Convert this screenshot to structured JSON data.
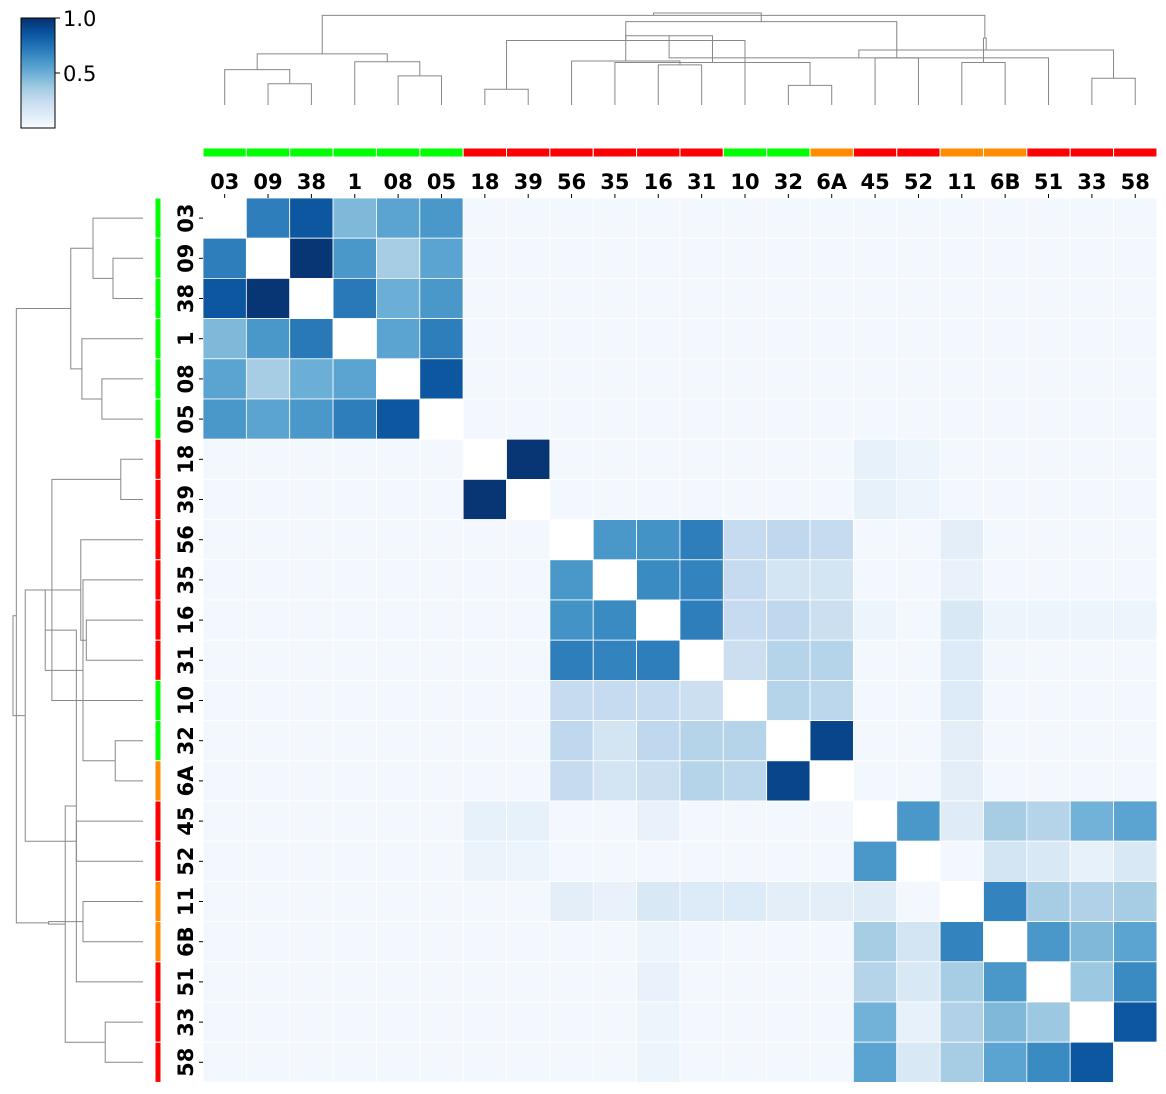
{
  "chart_data": {
    "type": "heatmap",
    "title": "",
    "xlabel": "",
    "ylabel": "",
    "labels": [
      "03",
      "09",
      "38",
      "1",
      "08",
      "05",
      "18",
      "39",
      "56",
      "35",
      "16",
      "31",
      "10",
      "32",
      "6A",
      "45",
      "52",
      "11",
      "6B",
      "51",
      "33",
      "58"
    ],
    "groups": [
      "green",
      "green",
      "green",
      "green",
      "green",
      "green",
      "red",
      "red",
      "red",
      "red",
      "red",
      "red",
      "green",
      "green",
      "orange",
      "red",
      "red",
      "orange",
      "orange",
      "red",
      "red",
      "red"
    ],
    "group_colors": {
      "green": "#00ff00",
      "red": "#ff0000",
      "orange": "#ff8c00"
    },
    "colorbar": {
      "min": 0.0,
      "max": 1.0,
      "ticks": [
        0.5,
        1.0
      ],
      "tick_labels": [
        "0.5",
        "1.0"
      ],
      "colormap": "Blues"
    },
    "values": [
      [
        null,
        0.7,
        0.85,
        0.45,
        0.55,
        0.6,
        0.02,
        0.02,
        0.02,
        0.02,
        0.02,
        0.02,
        0.02,
        0.02,
        0.02,
        0.02,
        0.02,
        0.02,
        0.02,
        0.02,
        0.02,
        0.02
      ],
      [
        0.7,
        null,
        0.98,
        0.6,
        0.35,
        0.55,
        0.02,
        0.02,
        0.02,
        0.02,
        0.02,
        0.02,
        0.02,
        0.02,
        0.02,
        0.02,
        0.02,
        0.02,
        0.02,
        0.02,
        0.02,
        0.02
      ],
      [
        0.85,
        0.98,
        null,
        0.72,
        0.5,
        0.6,
        0.02,
        0.02,
        0.02,
        0.02,
        0.02,
        0.02,
        0.02,
        0.02,
        0.02,
        0.02,
        0.02,
        0.02,
        0.02,
        0.02,
        0.02,
        0.02
      ],
      [
        0.45,
        0.6,
        0.72,
        null,
        0.55,
        0.7,
        0.02,
        0.02,
        0.02,
        0.02,
        0.02,
        0.02,
        0.02,
        0.02,
        0.02,
        0.02,
        0.02,
        0.02,
        0.02,
        0.02,
        0.02,
        0.02
      ],
      [
        0.55,
        0.35,
        0.5,
        0.55,
        null,
        0.85,
        0.02,
        0.02,
        0.02,
        0.02,
        0.02,
        0.02,
        0.02,
        0.02,
        0.02,
        0.02,
        0.02,
        0.02,
        0.02,
        0.02,
        0.02,
        0.02
      ],
      [
        0.6,
        0.55,
        0.6,
        0.7,
        0.85,
        null,
        0.02,
        0.02,
        0.02,
        0.02,
        0.02,
        0.02,
        0.02,
        0.02,
        0.02,
        0.02,
        0.02,
        0.02,
        0.02,
        0.02,
        0.02,
        0.02
      ],
      [
        0.02,
        0.02,
        0.02,
        0.02,
        0.02,
        0.02,
        null,
        0.98,
        0.02,
        0.02,
        0.02,
        0.02,
        0.02,
        0.02,
        0.02,
        0.08,
        0.05,
        0.02,
        0.02,
        0.02,
        0.02,
        0.02
      ],
      [
        0.02,
        0.02,
        0.02,
        0.02,
        0.02,
        0.02,
        0.98,
        null,
        0.02,
        0.02,
        0.02,
        0.02,
        0.02,
        0.02,
        0.02,
        0.08,
        0.05,
        0.02,
        0.02,
        0.02,
        0.02,
        0.02
      ],
      [
        0.02,
        0.02,
        0.02,
        0.02,
        0.02,
        0.02,
        0.02,
        0.02,
        null,
        0.6,
        0.62,
        0.7,
        0.25,
        0.27,
        0.25,
        0.02,
        0.02,
        0.1,
        0.02,
        0.02,
        0.02,
        0.02
      ],
      [
        0.02,
        0.02,
        0.02,
        0.02,
        0.02,
        0.02,
        0.02,
        0.02,
        0.6,
        null,
        0.65,
        0.68,
        0.25,
        0.18,
        0.18,
        0.02,
        0.02,
        0.07,
        0.02,
        0.02,
        0.02,
        0.02
      ],
      [
        0.02,
        0.02,
        0.02,
        0.02,
        0.02,
        0.02,
        0.02,
        0.02,
        0.62,
        0.65,
        null,
        0.7,
        0.25,
        0.27,
        0.22,
        0.05,
        0.02,
        0.15,
        0.05,
        0.05,
        0.05,
        0.05
      ],
      [
        0.02,
        0.02,
        0.02,
        0.02,
        0.02,
        0.02,
        0.02,
        0.02,
        0.7,
        0.68,
        0.7,
        null,
        0.22,
        0.3,
        0.3,
        0.02,
        0.02,
        0.13,
        0.03,
        0.02,
        0.02,
        0.02
      ],
      [
        0.02,
        0.02,
        0.02,
        0.02,
        0.02,
        0.02,
        0.02,
        0.02,
        0.25,
        0.25,
        0.25,
        0.22,
        null,
        0.3,
        0.28,
        0.02,
        0.02,
        0.13,
        0.02,
        0.02,
        0.02,
        0.02
      ],
      [
        0.02,
        0.02,
        0.02,
        0.02,
        0.02,
        0.02,
        0.02,
        0.02,
        0.27,
        0.18,
        0.27,
        0.3,
        0.3,
        null,
        0.92,
        0.02,
        0.02,
        0.1,
        0.02,
        0.02,
        0.02,
        0.02
      ],
      [
        0.02,
        0.02,
        0.02,
        0.02,
        0.02,
        0.02,
        0.02,
        0.02,
        0.25,
        0.18,
        0.22,
        0.3,
        0.28,
        0.92,
        null,
        0.02,
        0.02,
        0.1,
        0.02,
        0.02,
        0.02,
        0.02
      ],
      [
        0.02,
        0.02,
        0.02,
        0.02,
        0.02,
        0.02,
        0.08,
        0.08,
        0.02,
        0.02,
        0.07,
        0.02,
        0.02,
        0.02,
        0.02,
        null,
        0.6,
        0.12,
        0.35,
        0.3,
        0.48,
        0.55
      ],
      [
        0.02,
        0.02,
        0.02,
        0.02,
        0.02,
        0.02,
        0.06,
        0.05,
        0.02,
        0.02,
        0.02,
        0.02,
        0.02,
        0.02,
        0.02,
        0.6,
        null,
        0.02,
        0.18,
        0.15,
        0.08,
        0.15
      ],
      [
        0.02,
        0.02,
        0.02,
        0.02,
        0.02,
        0.02,
        0.02,
        0.02,
        0.1,
        0.07,
        0.15,
        0.13,
        0.13,
        0.1,
        0.1,
        0.12,
        0.02,
        null,
        0.68,
        0.35,
        0.32,
        0.35
      ],
      [
        0.02,
        0.02,
        0.02,
        0.02,
        0.02,
        0.02,
        0.02,
        0.02,
        0.02,
        0.02,
        0.05,
        0.03,
        0.02,
        0.02,
        0.02,
        0.35,
        0.18,
        0.68,
        null,
        0.6,
        0.45,
        0.55
      ],
      [
        0.02,
        0.02,
        0.02,
        0.02,
        0.02,
        0.02,
        0.02,
        0.02,
        0.02,
        0.02,
        0.07,
        0.02,
        0.02,
        0.02,
        0.02,
        0.3,
        0.15,
        0.35,
        0.6,
        null,
        0.38,
        0.65
      ],
      [
        0.02,
        0.02,
        0.02,
        0.02,
        0.02,
        0.02,
        0.02,
        0.02,
        0.02,
        0.02,
        0.05,
        0.02,
        0.02,
        0.02,
        0.02,
        0.48,
        0.08,
        0.32,
        0.45,
        0.38,
        null,
        0.85
      ],
      [
        0.02,
        0.02,
        0.02,
        0.02,
        0.02,
        0.02,
        0.02,
        0.02,
        0.02,
        0.02,
        0.05,
        0.02,
        0.02,
        0.02,
        0.02,
        0.55,
        0.15,
        0.35,
        0.55,
        0.65,
        0.85,
        null
      ]
    ],
    "linkage": [
      [
        1,
        2,
        0.27
      ],
      [
        4,
        5,
        0.37
      ],
      [
        0,
        22,
        0.45
      ],
      [
        3,
        23,
        0.55
      ],
      [
        24,
        25,
        0.65
      ],
      [
        6,
        7,
        0.2
      ],
      [
        13,
        14,
        0.25
      ],
      [
        10,
        11,
        0.51
      ],
      [
        9,
        28,
        0.54
      ],
      [
        8,
        29,
        0.56
      ],
      [
        12,
        27,
        0.82
      ],
      [
        30,
        31,
        0.88
      ],
      [
        20,
        21,
        0.34
      ],
      [
        19,
        33,
        0.6
      ],
      [
        17,
        18,
        0.54
      ],
      [
        34,
        35,
        0.7
      ],
      [
        15,
        16,
        0.6
      ],
      [
        36,
        37,
        0.85
      ],
      [
        32,
        38,
        1.06
      ],
      [
        26,
        39,
        1.14
      ],
      [
        40,
        41,
        1.17
      ]
    ]
  }
}
